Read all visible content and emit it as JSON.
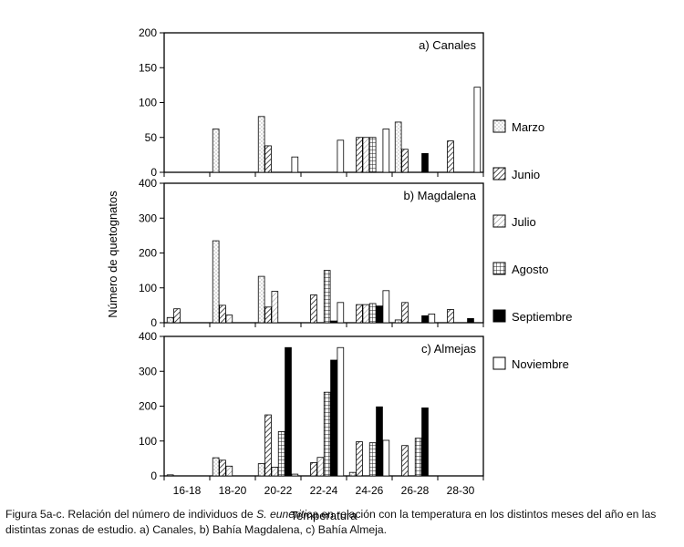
{
  "chart_data": {
    "type": "bar",
    "categories": [
      "16-18",
      "18-20",
      "20-22",
      "22-24",
      "24-26",
      "26-28",
      "28-30"
    ],
    "xlabel": "Temperatura",
    "ylabel": "Número de quetognatos",
    "legend": {
      "placement": "right",
      "entries": [
        "Marzo",
        "Junio",
        "Julio",
        "Agosto",
        "Septiembre",
        "Noviembre"
      ]
    },
    "series_styles": [
      {
        "name": "Marzo",
        "pattern": "dots",
        "color": "#ffffff"
      },
      {
        "name": "Junio",
        "pattern": "diagonal-hatch",
        "color": "#222222"
      },
      {
        "name": "Julio",
        "pattern": "light-diagonal-hatch",
        "color": "#555555"
      },
      {
        "name": "Agosto",
        "pattern": "grid",
        "color": "#222222"
      },
      {
        "name": "Septiembre",
        "pattern": "solid",
        "color": "#000000"
      },
      {
        "name": "Noviembre",
        "pattern": "empty",
        "color": "#ffffff"
      }
    ],
    "grid": false,
    "panels": [
      {
        "title": "a) Canales",
        "ylim": [
          0,
          200
        ],
        "yticks": [
          0,
          50,
          100,
          150,
          200
        ],
        "series": [
          {
            "name": "Marzo",
            "values": [
              0,
              62,
              80,
              0,
              0,
              72,
              0
            ]
          },
          {
            "name": "Junio",
            "values": [
              0,
              0,
              38,
              0,
              50,
              33,
              45
            ]
          },
          {
            "name": "Julio",
            "values": [
              0,
              0,
              0,
              0,
              50,
              0,
              0
            ]
          },
          {
            "name": "Agosto",
            "values": [
              0,
              0,
              0,
              0,
              50,
              0,
              0
            ]
          },
          {
            "name": "Septiembre",
            "values": [
              0,
              0,
              0,
              0,
              0,
              27,
              0
            ]
          },
          {
            "name": "Noviembre",
            "values": [
              0,
              0,
              22,
              46,
              62,
              0,
              122
            ]
          }
        ]
      },
      {
        "title": "b) Magdalena",
        "ylim": [
          0,
          400
        ],
        "yticks": [
          0,
          100,
          200,
          300,
          400
        ],
        "series": [
          {
            "name": "Marzo",
            "values": [
              15,
              235,
              133,
              0,
              0,
              8,
              0
            ]
          },
          {
            "name": "Junio",
            "values": [
              40,
              50,
              45,
              80,
              52,
              58,
              38
            ]
          },
          {
            "name": "Julio",
            "values": [
              0,
              22,
              90,
              0,
              52,
              0,
              0
            ]
          },
          {
            "name": "Agosto",
            "values": [
              0,
              0,
              0,
              150,
              55,
              0,
              0
            ]
          },
          {
            "name": "Septiembre",
            "values": [
              0,
              0,
              0,
              5,
              48,
              20,
              12
            ]
          },
          {
            "name": "Noviembre",
            "values": [
              0,
              0,
              0,
              58,
              92,
              25,
              0
            ]
          }
        ]
      },
      {
        "title": "c) Almejas",
        "ylim": [
          0,
          400
        ],
        "yticks": [
          0,
          100,
          200,
          300,
          400
        ],
        "series": [
          {
            "name": "Marzo",
            "values": [
              3,
              52,
              35,
              0,
              10,
              0,
              0
            ]
          },
          {
            "name": "Junio",
            "values": [
              0,
              45,
              175,
              38,
              98,
              87,
              0
            ]
          },
          {
            "name": "Julio",
            "values": [
              0,
              28,
              25,
              53,
              0,
              0,
              0
            ]
          },
          {
            "name": "Agosto",
            "values": [
              0,
              0,
              127,
              240,
              95,
              108,
              0
            ]
          },
          {
            "name": "Septiembre",
            "values": [
              0,
              0,
              368,
              332,
              198,
              195,
              0
            ]
          },
          {
            "name": "Noviembre",
            "values": [
              0,
              0,
              5,
              368,
              102,
              0,
              0
            ]
          }
        ]
      }
    ]
  },
  "caption": {
    "prefix": "Figura 5a-c. Relación del número de individuos de ",
    "species": "S. euneritica",
    "suffix": " en relación con la temperatura en los distintos meses del año en las distintas zonas de estudio. a) Canales, b) Bahía Magdalena, c) Bahía Almeja."
  }
}
